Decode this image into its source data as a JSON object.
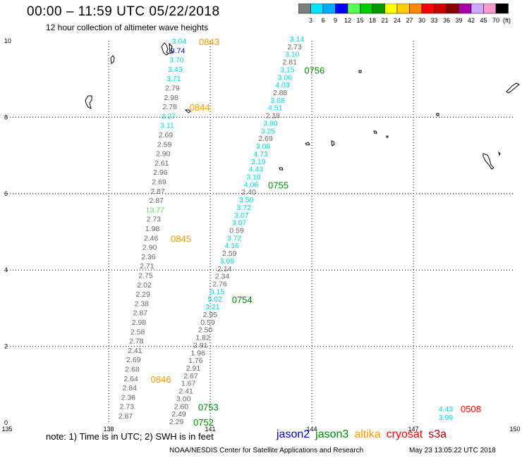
{
  "title": "00:00 – 11:59 UTC 05/22/2018",
  "subtitle": "12 hour collection of altimeter wave heights",
  "colorbar": {
    "unit": "(ft)",
    "labels": [
      "3",
      "6",
      "9",
      "12",
      "15",
      "18",
      "21",
      "24",
      "27",
      "30",
      "33",
      "36",
      "39",
      "42",
      "45",
      "70"
    ],
    "colors": [
      "#7f7f7f",
      "#00e5ff",
      "#00aaff",
      "#0000ff",
      "#55ff55",
      "#00cc00",
      "#009900",
      "#ffff00",
      "#ffcc00",
      "#ff8800",
      "#ff0000",
      "#cc0000",
      "#880000",
      "#aa00aa",
      "#ccaaff",
      "#ff99cc",
      "#000000"
    ]
  },
  "axes": {
    "x_ticks": [
      "135",
      "138",
      "141",
      "144",
      "147",
      "150"
    ],
    "y_ticks": [
      "0",
      "2",
      "4",
      "6",
      "8",
      "10"
    ],
    "x_range": [
      135,
      150
    ],
    "y_range": [
      0,
      10
    ]
  },
  "footer": {
    "note": "note: 1) Time is in UTC; 2) SWH is in feet",
    "satellites": [
      {
        "name": "jason2",
        "color": "#0000cc"
      },
      {
        "name": "jason3",
        "color": "#008800"
      },
      {
        "name": "altika",
        "color": "#ff9900"
      },
      {
        "name": "cryosat",
        "color": "#ff0000"
      },
      {
        "name": "s3a",
        "color": "#aa0000"
      }
    ],
    "credit": "NOAA/NESDIS Center for Satellite Applications and Research",
    "generated": "May 23 13:05:22 UTC 2018"
  },
  "track_left": {
    "satellite": "altika",
    "values": [
      {
        "v": "3.04",
        "c": "#00d7e6"
      },
      {
        "v": "9.74",
        "c": "#0000cc"
      },
      {
        "v": "3.70",
        "c": "#00d7e6"
      },
      {
        "v": "3.43",
        "c": "#00d7e6"
      },
      {
        "v": "3.71",
        "c": "#00d7e6"
      },
      {
        "v": "2.79",
        "c": "#666666"
      },
      {
        "v": "2.98",
        "c": "#666666"
      },
      {
        "v": "2.78",
        "c": "#666666"
      },
      {
        "v": "3.27",
        "c": "#00d7e6"
      },
      {
        "v": "3.11",
        "c": "#00d7e6"
      },
      {
        "v": "2.69",
        "c": "#666666"
      },
      {
        "v": "2.59",
        "c": "#666666"
      },
      {
        "v": "2.90",
        "c": "#666666"
      },
      {
        "v": "2.61",
        "c": "#666666"
      },
      {
        "v": "2.96",
        "c": "#666666"
      },
      {
        "v": "2.69",
        "c": "#666666"
      },
      {
        "v": "2.87",
        "c": "#666666"
      },
      {
        "v": "2.87",
        "c": "#666666"
      },
      {
        "v": "13.77",
        "c": "#55dd55"
      },
      {
        "v": "2.73",
        "c": "#666666"
      },
      {
        "v": "1.98",
        "c": "#666666"
      },
      {
        "v": "2.46",
        "c": "#666666"
      },
      {
        "v": "2.90",
        "c": "#666666"
      },
      {
        "v": "2.36",
        "c": "#666666"
      },
      {
        "v": "2.71",
        "c": "#666666"
      },
      {
        "v": "2.75",
        "c": "#666666"
      },
      {
        "v": "2.02",
        "c": "#666666"
      },
      {
        "v": "2.29",
        "c": "#666666"
      },
      {
        "v": "2.38",
        "c": "#666666"
      },
      {
        "v": "2.87",
        "c": "#666666"
      },
      {
        "v": "2.98",
        "c": "#666666"
      },
      {
        "v": "2.58",
        "c": "#666666"
      },
      {
        "v": "2.78",
        "c": "#666666"
      },
      {
        "v": "2.41",
        "c": "#666666"
      },
      {
        "v": "2.69",
        "c": "#666666"
      },
      {
        "v": "2.68",
        "c": "#666666"
      },
      {
        "v": "2.64",
        "c": "#666666"
      },
      {
        "v": "2.84",
        "c": "#666666"
      },
      {
        "v": "2.36",
        "c": "#666666"
      },
      {
        "v": "2.73",
        "c": "#666666"
      },
      {
        "v": "2.87",
        "c": "#666666"
      }
    ],
    "times": [
      {
        "t": "0843",
        "color": "#ff9900",
        "after": 0
      },
      {
        "t": "0844",
        "color": "#ff9900",
        "after": 7
      },
      {
        "t": "0845",
        "color": "#ff9900",
        "after": 21
      },
      {
        "t": "0846",
        "color": "#ff9900",
        "after": 36
      }
    ]
  },
  "track_right": {
    "satellite": "jason3",
    "values": [
      {
        "v": "3.14",
        "c": "#00d7e6"
      },
      {
        "v": "2.73",
        "c": "#666666"
      },
      {
        "v": "3.10",
        "c": "#00d7e6"
      },
      {
        "v": "2.81",
        "c": "#666666"
      },
      {
        "v": "3.15",
        "c": "#00d7e6"
      },
      {
        "v": "3.06",
        "c": "#00d7e6"
      },
      {
        "v": "4.03",
        "c": "#00d7e6"
      },
      {
        "v": "2.88",
        "c": "#666666"
      },
      {
        "v": "3.68",
        "c": "#00d7e6"
      },
      {
        "v": "4.51",
        "c": "#00d7e6"
      },
      {
        "v": "2.18",
        "c": "#666666"
      },
      {
        "v": "3.80",
        "c": "#00d7e6"
      },
      {
        "v": "3.25",
        "c": "#00d7e6"
      },
      {
        "v": "2.69",
        "c": "#666666"
      },
      {
        "v": "3.08",
        "c": "#00d7e6"
      },
      {
        "v": "4.73",
        "c": "#00d7e6"
      },
      {
        "v": "3.19",
        "c": "#00d7e6"
      },
      {
        "v": "4.43",
        "c": "#00d7e6"
      },
      {
        "v": "3.18",
        "c": "#00d7e6"
      },
      {
        "v": "4.06",
        "c": "#00d7e6"
      },
      {
        "v": "2.40",
        "c": "#666666"
      },
      {
        "v": "3.50",
        "c": "#00d7e6"
      },
      {
        "v": "3.72",
        "c": "#00d7e6"
      },
      {
        "v": "3.07",
        "c": "#00d7e6"
      },
      {
        "v": "3.07",
        "c": "#00d7e6"
      },
      {
        "v": "0.59",
        "c": "#666666"
      },
      {
        "v": "3.72",
        "c": "#00d7e6"
      },
      {
        "v": "4.16",
        "c": "#00d7e6"
      },
      {
        "v": "2.59",
        "c": "#666666"
      },
      {
        "v": "3.99",
        "c": "#00d7e6"
      },
      {
        "v": "2.14",
        "c": "#666666"
      },
      {
        "v": "2.34",
        "c": "#666666"
      },
      {
        "v": "2.76",
        "c": "#666666"
      },
      {
        "v": "3.15",
        "c": "#00d7e6"
      },
      {
        "v": "5.02",
        "c": "#00d7e6"
      },
      {
        "v": "3.21",
        "c": "#00d7e6"
      },
      {
        "v": "2.95",
        "c": "#666666"
      },
      {
        "v": "0.59",
        "c": "#666666"
      },
      {
        "v": "2.50",
        "c": "#666666"
      },
      {
        "v": "1.82",
        "c": "#666666"
      },
      {
        "v": "2.91",
        "c": "#666666"
      },
      {
        "v": "1.96",
        "c": "#666666"
      },
      {
        "v": "1.76",
        "c": "#666666"
      },
      {
        "v": "2.91",
        "c": "#666666"
      },
      {
        "v": "2.67",
        "c": "#666666"
      },
      {
        "v": "1.67",
        "c": "#666666"
      },
      {
        "v": "2.41",
        "c": "#666666"
      },
      {
        "v": "3.00",
        "c": "#666666"
      },
      {
        "v": "2.60",
        "c": "#666666"
      },
      {
        "v": "2.49",
        "c": "#666666"
      },
      {
        "v": "2.29",
        "c": "#666666"
      }
    ],
    "times": [
      {
        "t": "0756",
        "color": "#008800",
        "after": 4
      },
      {
        "t": "0755",
        "color": "#008800",
        "after": 19
      },
      {
        "t": "0754",
        "color": "#008800",
        "after": 34
      },
      {
        "t": "0753",
        "color": "#008800",
        "after": 48
      },
      {
        "t": "0752",
        "color": "#008800",
        "after": 50
      }
    ]
  },
  "cryosat_points": {
    "values": [
      {
        "v": "4.43",
        "c": "#00d7e6"
      },
      {
        "v": "3.99",
        "c": "#00d7e6"
      }
    ],
    "time": {
      "t": "0508",
      "color": "#ff0000"
    }
  }
}
